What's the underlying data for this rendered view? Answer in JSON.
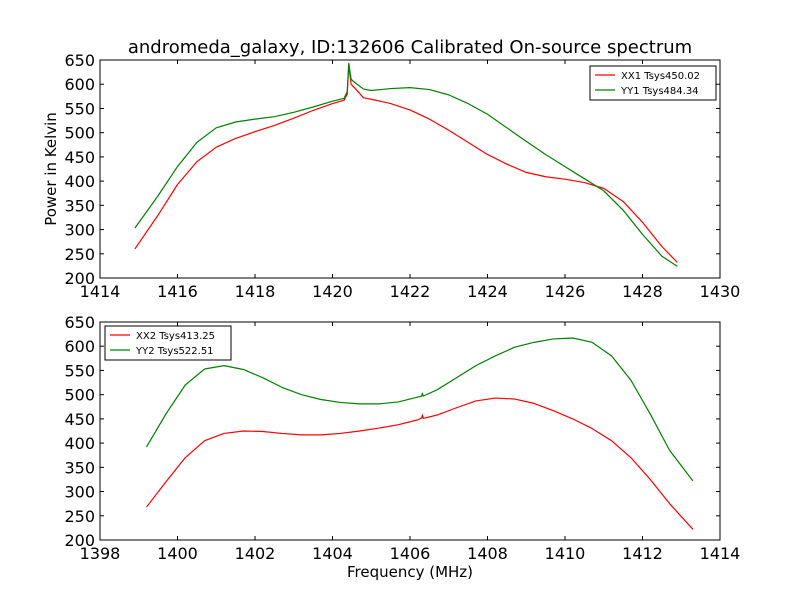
{
  "figure_title": "andromeda_galaxy, ID:132606 Calibrated On-source spectrum",
  "chart_data": [
    {
      "type": "line",
      "title": "andromeda_galaxy, ID:132606 Calibrated On-source spectrum",
      "xlabel": "",
      "ylabel": "Power in Kelvin",
      "xlim": [
        1414,
        1430
      ],
      "ylim": [
        200,
        650
      ],
      "xticks": [
        1414,
        1416,
        1418,
        1420,
        1422,
        1424,
        1426,
        1428,
        1430
      ],
      "yticks": [
        200,
        250,
        300,
        350,
        400,
        450,
        500,
        550,
        600,
        650
      ],
      "grid": false,
      "legend_position": "top-right",
      "series": [
        {
          "name": "XX1 Tsys450.02",
          "color": "#ff0000",
          "points": [
            [
              1414.9,
              260
            ],
            [
              1415.5,
              330
            ],
            [
              1416,
              393
            ],
            [
              1416.5,
              440
            ],
            [
              1417,
              470
            ],
            [
              1417.5,
              488
            ],
            [
              1418,
              502
            ],
            [
              1418.5,
              515
            ],
            [
              1419,
              530
            ],
            [
              1419.5,
              546
            ],
            [
              1420,
              560
            ],
            [
              1420.3,
              567
            ],
            [
              1420.38,
              580
            ],
            [
              1420.42,
              640
            ],
            [
              1420.48,
              600
            ],
            [
              1420.6,
              590
            ],
            [
              1420.8,
              572
            ],
            [
              1421,
              569
            ],
            [
              1421.5,
              560
            ],
            [
              1422,
              547
            ],
            [
              1422.5,
              528
            ],
            [
              1423,
              505
            ],
            [
              1423.5,
              480
            ],
            [
              1424,
              455
            ],
            [
              1424.5,
              435
            ],
            [
              1425,
              418
            ],
            [
              1425.5,
              409
            ],
            [
              1426,
              404
            ],
            [
              1426.5,
              397
            ],
            [
              1427,
              385
            ],
            [
              1427.5,
              358
            ],
            [
              1428,
              315
            ],
            [
              1428.5,
              265
            ],
            [
              1428.9,
              232
            ]
          ]
        },
        {
          "name": "YY1 Tsys484.34",
          "color": "#008000",
          "points": [
            [
              1414.9,
              303
            ],
            [
              1415.5,
              370
            ],
            [
              1416,
              430
            ],
            [
              1416.5,
              480
            ],
            [
              1417,
              510
            ],
            [
              1417.5,
              522
            ],
            [
              1418,
              528
            ],
            [
              1418.5,
              533
            ],
            [
              1419,
              542
            ],
            [
              1419.5,
              553
            ],
            [
              1420,
              565
            ],
            [
              1420.3,
              571
            ],
            [
              1420.38,
              585
            ],
            [
              1420.42,
              643
            ],
            [
              1420.48,
              610
            ],
            [
              1420.6,
              602
            ],
            [
              1420.8,
              590
            ],
            [
              1421,
              587
            ],
            [
              1421.5,
              591
            ],
            [
              1422,
              593
            ],
            [
              1422.5,
              589
            ],
            [
              1423,
              578
            ],
            [
              1423.5,
              560
            ],
            [
              1424,
              538
            ],
            [
              1424.5,
              510
            ],
            [
              1425,
              482
            ],
            [
              1425.5,
              455
            ],
            [
              1426,
              430
            ],
            [
              1426.5,
              405
            ],
            [
              1427,
              380
            ],
            [
              1427.5,
              340
            ],
            [
              1428,
              290
            ],
            [
              1428.5,
              245
            ],
            [
              1428.9,
              224
            ]
          ]
        }
      ]
    },
    {
      "type": "line",
      "title": "",
      "xlabel": "Frequency (MHz)",
      "ylabel": "",
      "xlim": [
        1398,
        1414
      ],
      "ylim": [
        200,
        650
      ],
      "xticks": [
        1398,
        1400,
        1402,
        1404,
        1406,
        1408,
        1410,
        1412,
        1414
      ],
      "yticks": [
        200,
        250,
        300,
        350,
        400,
        450,
        500,
        550,
        600,
        650
      ],
      "grid": false,
      "legend_position": "top-left",
      "series": [
        {
          "name": "XX2 Tsys413.25",
          "color": "#ff0000",
          "points": [
            [
              1399.2,
              268
            ],
            [
              1399.7,
              320
            ],
            [
              1400.2,
              370
            ],
            [
              1400.7,
              405
            ],
            [
              1401.2,
              420
            ],
            [
              1401.7,
              425
            ],
            [
              1402.2,
              424
            ],
            [
              1402.7,
              420
            ],
            [
              1403.2,
              417
            ],
            [
              1403.7,
              417
            ],
            [
              1404.2,
              420
            ],
            [
              1404.7,
              425
            ],
            [
              1405.2,
              431
            ],
            [
              1405.7,
              438
            ],
            [
              1406.2,
              448
            ],
            [
              1406.3,
              452
            ],
            [
              1406.32,
              458
            ],
            [
              1406.34,
              451
            ],
            [
              1406.7,
              458
            ],
            [
              1407.2,
              473
            ],
            [
              1407.7,
              487
            ],
            [
              1408.2,
              493
            ],
            [
              1408.7,
              491
            ],
            [
              1409.2,
              482
            ],
            [
              1409.7,
              467
            ],
            [
              1410.2,
              450
            ],
            [
              1410.7,
              430
            ],
            [
              1411.2,
              405
            ],
            [
              1411.7,
              370
            ],
            [
              1412.2,
              325
            ],
            [
              1412.7,
              275
            ],
            [
              1413.3,
              222
            ]
          ]
        },
        {
          "name": "YY2 Tsys522.51",
          "color": "#008000",
          "points": [
            [
              1399.2,
              392
            ],
            [
              1399.7,
              460
            ],
            [
              1400.2,
              520
            ],
            [
              1400.7,
              553
            ],
            [
              1401.2,
              560
            ],
            [
              1401.7,
              552
            ],
            [
              1402.2,
              535
            ],
            [
              1402.7,
              515
            ],
            [
              1403.2,
              500
            ],
            [
              1403.7,
              490
            ],
            [
              1404.2,
              484
            ],
            [
              1404.7,
              481
            ],
            [
              1405.2,
              481
            ],
            [
              1405.7,
              485
            ],
            [
              1406.2,
              495
            ],
            [
              1406.3,
              497
            ],
            [
              1406.32,
              503
            ],
            [
              1406.34,
              497
            ],
            [
              1406.7,
              510
            ],
            [
              1407.2,
              535
            ],
            [
              1407.7,
              560
            ],
            [
              1408.2,
              580
            ],
            [
              1408.7,
              598
            ],
            [
              1409.2,
              608
            ],
            [
              1409.7,
              615
            ],
            [
              1410.2,
              617
            ],
            [
              1410.7,
              608
            ],
            [
              1411.2,
              580
            ],
            [
              1411.7,
              530
            ],
            [
              1412.2,
              460
            ],
            [
              1412.7,
              385
            ],
            [
              1413.3,
              322
            ]
          ]
        }
      ]
    }
  ]
}
